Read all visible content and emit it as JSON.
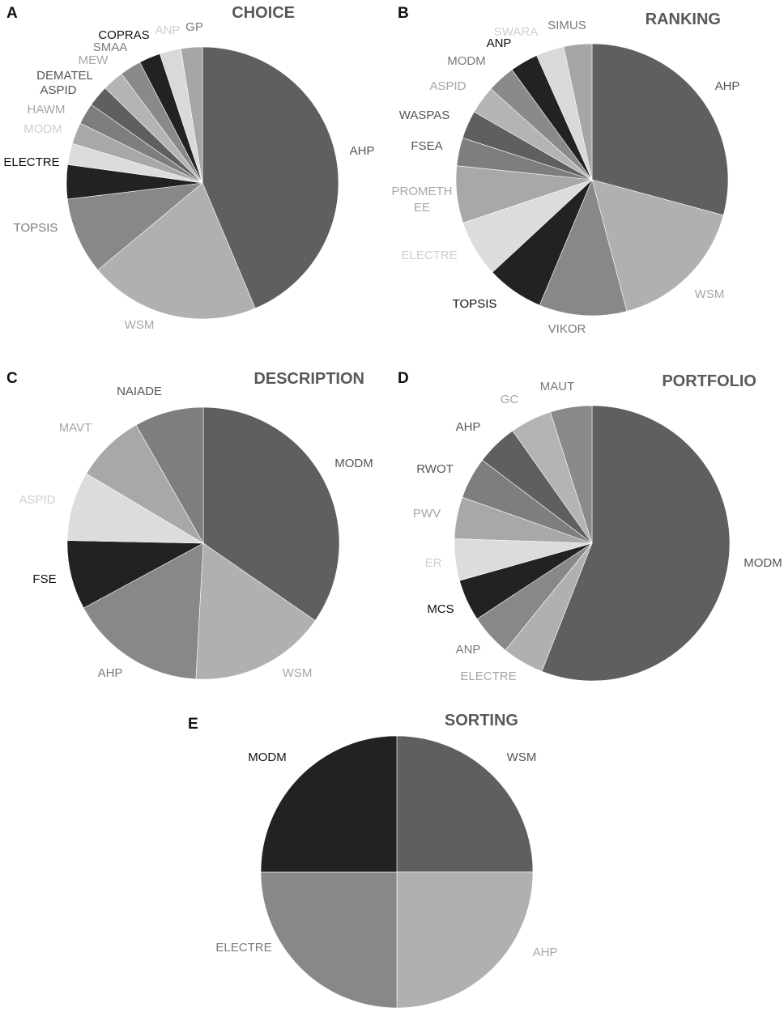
{
  "chart_data": [
    {
      "panel": "A",
      "type": "pie",
      "title": "CHOICE",
      "slices": [
        {
          "label": "AHP",
          "value": 43,
          "color": "#5f5f5f"
        },
        {
          "label": "WSM",
          "value": 20,
          "color": "#b0b0b0"
        },
        {
          "label": "TOPSIS",
          "value": 9,
          "color": "#888888"
        },
        {
          "label": "ELECTRE",
          "value": 4,
          "color": "#222222"
        },
        {
          "label": "MODM",
          "value": 2.5,
          "color": "#dcdcdc"
        },
        {
          "label": "HAWM",
          "value": 2.5,
          "color": "#a8a8a8"
        },
        {
          "label": "ASPID",
          "value": 2.5,
          "color": "#7e7e7e"
        },
        {
          "label": "DEMATEL",
          "value": 2.5,
          "color": "#5f5f5f"
        },
        {
          "label": "MEW",
          "value": 2.5,
          "color": "#b4b4b4"
        },
        {
          "label": "SMAA",
          "value": 2.5,
          "color": "#8a8a8a"
        },
        {
          "label": "COPRAS",
          "value": 2.5,
          "color": "#222222"
        },
        {
          "label": "ANP",
          "value": 2.5,
          "color": "#d9d9d9"
        },
        {
          "label": "GP",
          "value": 2.5,
          "color": "#a6a6a6"
        }
      ]
    },
    {
      "panel": "B",
      "type": "pie",
      "title": "RANKING",
      "slices": [
        {
          "label": "AHP",
          "value": 28,
          "color": "#5f5f5f"
        },
        {
          "label": "WSM",
          "value": 16,
          "color": "#b0b0b0"
        },
        {
          "label": "VIKOR",
          "value": 10,
          "color": "#888888"
        },
        {
          "label": "TOPSIS",
          "value": 6.5,
          "color": "#222222"
        },
        {
          "label": "ELECTRE",
          "value": 6.5,
          "color": "#dcdcdc"
        },
        {
          "label": "PROMETHEE",
          "value": 6.5,
          "color": "#a8a8a8"
        },
        {
          "label": "FSEA",
          "value": 3.2,
          "color": "#7e7e7e"
        },
        {
          "label": "WASPAS",
          "value": 3.2,
          "color": "#5f5f5f"
        },
        {
          "label": "ASPID",
          "value": 3.2,
          "color": "#b4b4b4"
        },
        {
          "label": "MODM",
          "value": 3.2,
          "color": "#8a8a8a"
        },
        {
          "label": "ANP",
          "value": 3.2,
          "color": "#222222"
        },
        {
          "label": "SWARA",
          "value": 3.2,
          "color": "#d9d9d9"
        },
        {
          "label": "SIMUS",
          "value": 3.2,
          "color": "#a6a6a6"
        }
      ]
    },
    {
      "panel": "C",
      "type": "pie",
      "title": "DESCRIPTION",
      "slices": [
        {
          "label": "MODM",
          "value": 32,
          "color": "#5f5f5f"
        },
        {
          "label": "WSM",
          "value": 15,
          "color": "#b0b0b0"
        },
        {
          "label": "AHP",
          "value": 15,
          "color": "#888888"
        },
        {
          "label": "FSE",
          "value": 7.6,
          "color": "#222222"
        },
        {
          "label": "ASPID",
          "value": 7.6,
          "color": "#dcdcdc"
        },
        {
          "label": "MAVT",
          "value": 7.6,
          "color": "#a8a8a8"
        },
        {
          "label": "NAIADE",
          "value": 7.6,
          "color": "#7e7e7e"
        }
      ]
    },
    {
      "panel": "D",
      "type": "pie",
      "title": "PORTFOLIO",
      "slices": [
        {
          "label": "MODM",
          "value": 56,
          "color": "#5f5f5f"
        },
        {
          "label": "ELECTRE",
          "value": 4.9,
          "color": "#b0b0b0"
        },
        {
          "label": "ANP",
          "value": 4.9,
          "color": "#888888"
        },
        {
          "label": "MCS",
          "value": 4.9,
          "color": "#222222"
        },
        {
          "label": "ER",
          "value": 4.9,
          "color": "#dcdcdc"
        },
        {
          "label": "PWV",
          "value": 4.9,
          "color": "#a8a8a8"
        },
        {
          "label": "RWOT",
          "value": 4.9,
          "color": "#7e7e7e"
        },
        {
          "label": "AHP",
          "value": 4.9,
          "color": "#5f5f5f"
        },
        {
          "label": "GC",
          "value": 4.9,
          "color": "#b4b4b4"
        },
        {
          "label": "MAUT",
          "value": 4.9,
          "color": "#8a8a8a"
        }
      ]
    },
    {
      "panel": "E",
      "type": "pie",
      "title": "SORTING",
      "slices": [
        {
          "label": "WSM",
          "value": 25,
          "color": "#5f5f5f"
        },
        {
          "label": "AHP",
          "value": 25,
          "color": "#b0b0b0"
        },
        {
          "label": "ELECTRE",
          "value": 25,
          "color": "#888888"
        },
        {
          "label": "MODM",
          "value": 25,
          "color": "#222222"
        }
      ]
    }
  ]
}
